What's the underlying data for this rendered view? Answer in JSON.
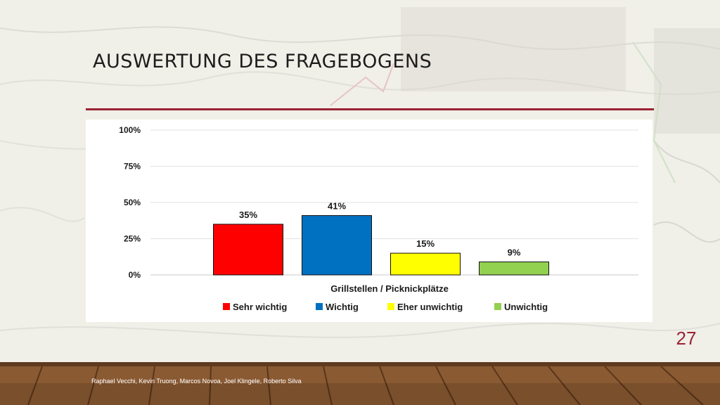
{
  "slide": {
    "title": "AUSWERTUNG DES FRAGEBOGENS",
    "page_number": "27",
    "footer": "Raphael Vecchi, Kevin Truong, Marcos Novoa, Joel Klingele, Roberto Silva",
    "accent_color": "#9b2335"
  },
  "chart_data": {
    "type": "bar",
    "categories": [
      "Grillstellen / Picknickplätze"
    ],
    "series": [
      {
        "name": "Sehr wichtig",
        "values": [
          35
        ],
        "label": "35%",
        "color": "#ff0000"
      },
      {
        "name": "Wichtig",
        "values": [
          41
        ],
        "label": "41%",
        "color": "#0070c0"
      },
      {
        "name": "Eher unwichtig",
        "values": [
          15
        ],
        "label": "15%",
        "color": "#ffff00"
      },
      {
        "name": "Unwichtig",
        "values": [
          9
        ],
        "label": "9%",
        "color": "#92d050"
      }
    ],
    "yticks": [
      "0%",
      "25%",
      "50%",
      "75%",
      "100%"
    ],
    "ylim": [
      0,
      100
    ],
    "xlabel": "Grillstellen / Picknickplätze",
    "ylabel": "",
    "grid": true,
    "legend_position": "bottom"
  }
}
